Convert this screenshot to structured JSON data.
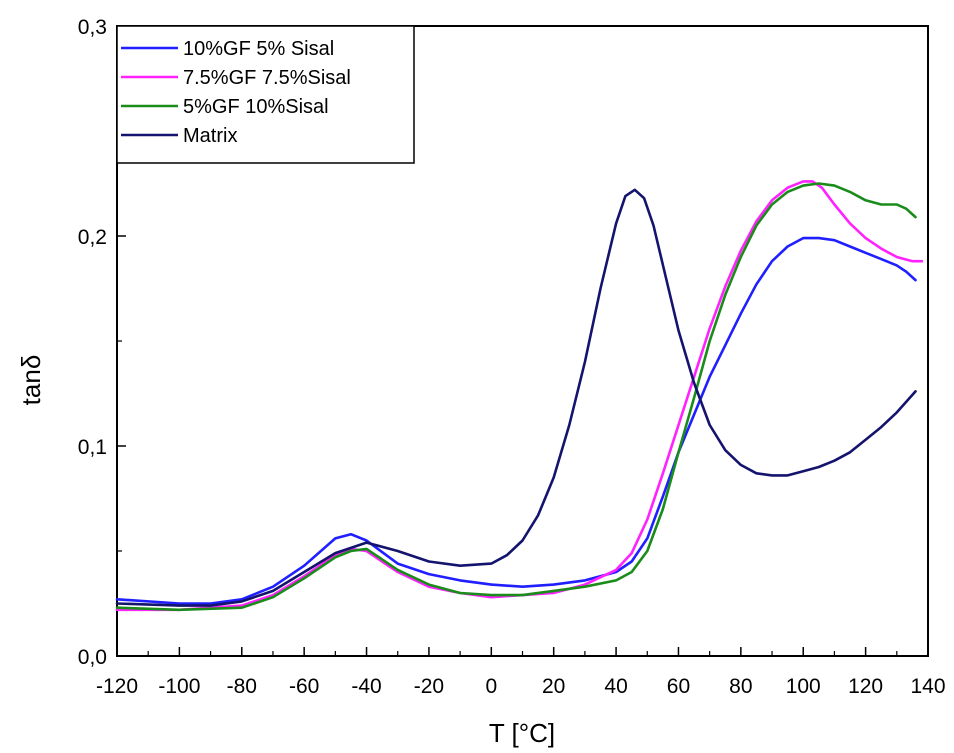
{
  "chart_data": {
    "type": "line",
    "title": "",
    "xlabel": "T [°C]",
    "ylabel": "tanδ",
    "xlim": [
      -120,
      140
    ],
    "ylim": [
      0,
      0.3
    ],
    "x_ticks": [
      -120,
      -100,
      -80,
      -60,
      -40,
      -20,
      0,
      20,
      40,
      60,
      80,
      100,
      120,
      140
    ],
    "x_tick_labels": [
      "-120",
      "-100",
      "-80",
      "-60",
      "-40",
      "-20",
      "0",
      "20",
      "40",
      "60",
      "80",
      "100",
      "120",
      "140"
    ],
    "y_ticks": [
      0,
      0.1,
      0.2,
      0.3
    ],
    "y_tick_labels": [
      "0,0",
      "0,1",
      "0,2",
      "0,3"
    ],
    "grid": false,
    "legend_position": "top-left",
    "series": [
      {
        "name": "10%GF 5% Sisal",
        "color": "#1f1fff",
        "points": [
          [
            -120,
            0.027
          ],
          [
            -100,
            0.025
          ],
          [
            -90,
            0.025
          ],
          [
            -80,
            0.027
          ],
          [
            -70,
            0.033
          ],
          [
            -60,
            0.043
          ],
          [
            -50,
            0.056
          ],
          [
            -45,
            0.058
          ],
          [
            -40,
            0.055
          ],
          [
            -30,
            0.044
          ],
          [
            -20,
            0.039
          ],
          [
            -10,
            0.036
          ],
          [
            0,
            0.034
          ],
          [
            10,
            0.033
          ],
          [
            20,
            0.034
          ],
          [
            30,
            0.036
          ],
          [
            40,
            0.04
          ],
          [
            45,
            0.045
          ],
          [
            50,
            0.056
          ],
          [
            55,
            0.076
          ],
          [
            60,
            0.097
          ],
          [
            65,
            0.115
          ],
          [
            70,
            0.133
          ],
          [
            75,
            0.148
          ],
          [
            80,
            0.163
          ],
          [
            85,
            0.177
          ],
          [
            90,
            0.188
          ],
          [
            95,
            0.195
          ],
          [
            100,
            0.199
          ],
          [
            105,
            0.199
          ],
          [
            110,
            0.198
          ],
          [
            115,
            0.195
          ],
          [
            120,
            0.192
          ],
          [
            125,
            0.189
          ],
          [
            130,
            0.186
          ],
          [
            133,
            0.183
          ],
          [
            136,
            0.179
          ]
        ]
      },
      {
        "name": "7.5%GF 7.5%Sisal",
        "color": "#ff22ff",
        "points": [
          [
            -120,
            0.022
          ],
          [
            -100,
            0.022
          ],
          [
            -80,
            0.024
          ],
          [
            -70,
            0.029
          ],
          [
            -60,
            0.038
          ],
          [
            -50,
            0.048
          ],
          [
            -45,
            0.051
          ],
          [
            -40,
            0.05
          ],
          [
            -30,
            0.04
          ],
          [
            -20,
            0.033
          ],
          [
            -10,
            0.03
          ],
          [
            0,
            0.028
          ],
          [
            10,
            0.029
          ],
          [
            20,
            0.03
          ],
          [
            30,
            0.034
          ],
          [
            40,
            0.041
          ],
          [
            45,
            0.049
          ],
          [
            50,
            0.065
          ],
          [
            55,
            0.087
          ],
          [
            60,
            0.11
          ],
          [
            65,
            0.133
          ],
          [
            70,
            0.156
          ],
          [
            75,
            0.176
          ],
          [
            80,
            0.193
          ],
          [
            85,
            0.207
          ],
          [
            90,
            0.217
          ],
          [
            95,
            0.223
          ],
          [
            100,
            0.226
          ],
          [
            103,
            0.226
          ],
          [
            106,
            0.223
          ],
          [
            110,
            0.215
          ],
          [
            115,
            0.206
          ],
          [
            120,
            0.199
          ],
          [
            125,
            0.194
          ],
          [
            130,
            0.19
          ],
          [
            135,
            0.188
          ],
          [
            138,
            0.188
          ]
        ]
      },
      {
        "name": "5%GF 10%Sisal",
        "color": "#1a8c1a",
        "points": [
          [
            -120,
            0.023
          ],
          [
            -100,
            0.022
          ],
          [
            -80,
            0.023
          ],
          [
            -70,
            0.028
          ],
          [
            -60,
            0.037
          ],
          [
            -50,
            0.047
          ],
          [
            -45,
            0.05
          ],
          [
            -40,
            0.051
          ],
          [
            -30,
            0.041
          ],
          [
            -20,
            0.034
          ],
          [
            -10,
            0.03
          ],
          [
            0,
            0.029
          ],
          [
            10,
            0.029
          ],
          [
            20,
            0.031
          ],
          [
            30,
            0.033
          ],
          [
            40,
            0.036
          ],
          [
            45,
            0.04
          ],
          [
            50,
            0.05
          ],
          [
            55,
            0.07
          ],
          [
            60,
            0.097
          ],
          [
            65,
            0.123
          ],
          [
            70,
            0.15
          ],
          [
            75,
            0.172
          ],
          [
            80,
            0.19
          ],
          [
            85,
            0.205
          ],
          [
            90,
            0.215
          ],
          [
            95,
            0.221
          ],
          [
            100,
            0.224
          ],
          [
            105,
            0.225
          ],
          [
            110,
            0.224
          ],
          [
            115,
            0.221
          ],
          [
            120,
            0.217
          ],
          [
            125,
            0.215
          ],
          [
            130,
            0.215
          ],
          [
            133,
            0.213
          ],
          [
            136,
            0.209
          ]
        ]
      },
      {
        "name": "Matrix",
        "color": "#14146e",
        "points": [
          [
            -120,
            0.025
          ],
          [
            -100,
            0.024
          ],
          [
            -90,
            0.024
          ],
          [
            -80,
            0.026
          ],
          [
            -70,
            0.031
          ],
          [
            -60,
            0.04
          ],
          [
            -50,
            0.049
          ],
          [
            -40,
            0.054
          ],
          [
            -30,
            0.05
          ],
          [
            -20,
            0.045
          ],
          [
            -10,
            0.043
          ],
          [
            0,
            0.044
          ],
          [
            5,
            0.048
          ],
          [
            10,
            0.055
          ],
          [
            15,
            0.067
          ],
          [
            20,
            0.085
          ],
          [
            25,
            0.11
          ],
          [
            30,
            0.14
          ],
          [
            35,
            0.175
          ],
          [
            40,
            0.206
          ],
          [
            43,
            0.219
          ],
          [
            46,
            0.222
          ],
          [
            49,
            0.218
          ],
          [
            52,
            0.205
          ],
          [
            56,
            0.18
          ],
          [
            60,
            0.155
          ],
          [
            65,
            0.13
          ],
          [
            70,
            0.11
          ],
          [
            75,
            0.098
          ],
          [
            80,
            0.091
          ],
          [
            85,
            0.087
          ],
          [
            90,
            0.086
          ],
          [
            95,
            0.086
          ],
          [
            100,
            0.088
          ],
          [
            105,
            0.09
          ],
          [
            110,
            0.093
          ],
          [
            115,
            0.097
          ],
          [
            120,
            0.103
          ],
          [
            125,
            0.109
          ],
          [
            130,
            0.116
          ],
          [
            136,
            0.126
          ]
        ]
      }
    ]
  }
}
